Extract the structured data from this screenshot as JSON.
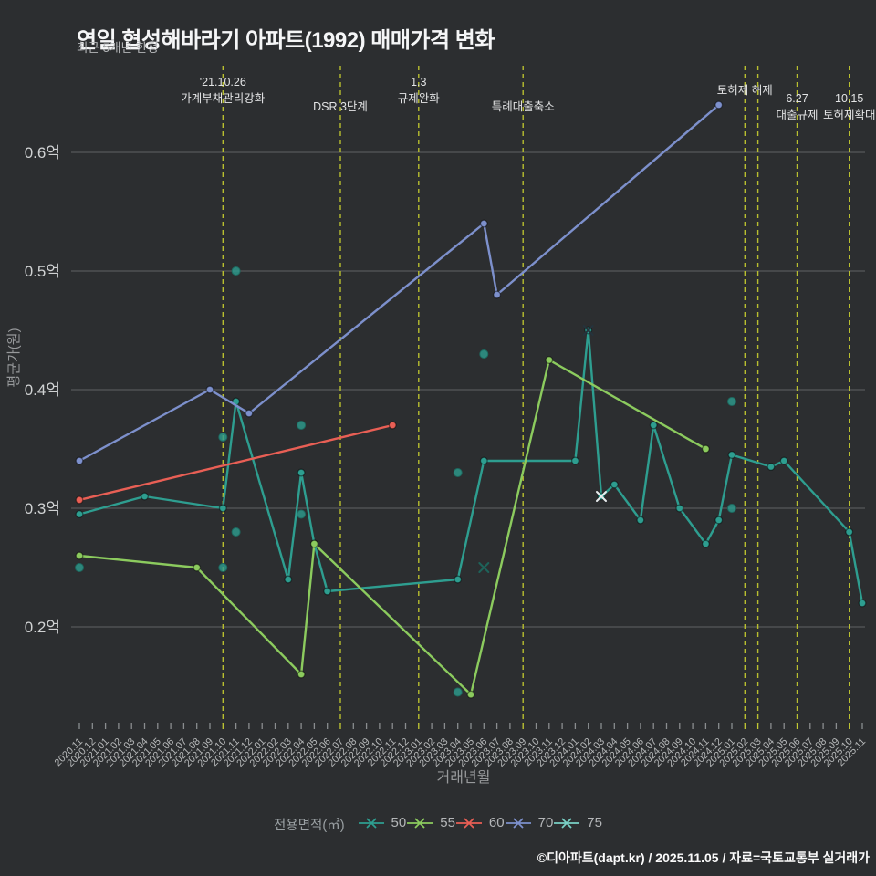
{
  "title": "연일 협성해바라기 아파트(1992) 매매가격 변화",
  "subtitle": "최근 5개년 한정",
  "footer": "©디아파트(dapt.kr) / 2025.11.05 / 자료=국토교통부 실거래가",
  "chart_data": {
    "type": "line",
    "title": "연일 협성해바라기 아파트(1992) 매매가격 변화",
    "subtitle": "최근 5개년 한정",
    "xlabel": "거래년월",
    "ylabel": "평균가(원)",
    "legend_title": "전용면적(㎡)",
    "ylim": [
      0.118,
      0.672
    ],
    "grid": "horizontal",
    "event_line_color": "#b9bf2f",
    "x_tick_highlight_color": "#c3ca34",
    "y_ticks": [
      {
        "label": "0.2억",
        "value": 0.2
      },
      {
        "label": "0.3억",
        "value": 0.3
      },
      {
        "label": "0.4억",
        "value": 0.4
      },
      {
        "label": "0.5억",
        "value": 0.5
      },
      {
        "label": "0.6억",
        "value": 0.6
      }
    ],
    "x_categories": [
      "2020.11",
      "2020.12",
      "2021.01",
      "2021.02",
      "2021.03",
      "2021.04",
      "2021.05",
      "2021.06",
      "2021.07",
      "2021.08",
      "2021.09",
      "2021.10",
      "2021.11",
      "2021.12",
      "2022.01",
      "2022.02",
      "2022.03",
      "2022.04",
      "2022.05",
      "2022.06",
      "2022.07",
      "2022.08",
      "2022.09",
      "2022.10",
      "2022.11",
      "2022.12",
      "2023.01",
      "2023.02",
      "2023.03",
      "2023.04",
      "2023.05",
      "2023.06",
      "2023.07",
      "2023.08",
      "2023.09",
      "2023.10",
      "2023.11",
      "2023.12",
      "2024.01",
      "2024.02",
      "2024.03",
      "2024.04",
      "2024.05",
      "2024.06",
      "2024.07",
      "2024.08",
      "2024.09",
      "2024.10",
      "2024.11",
      "2024.12",
      "2025.01",
      "2025.02",
      "2025.03",
      "2025.04",
      "2025.05",
      "2025.06",
      "2025.07",
      "2025.08",
      "2025.09",
      "2025.10",
      "2025.11"
    ],
    "series": [
      {
        "name": "50",
        "color": "#2e9e90",
        "points": [
          [
            "2020.11",
            0.295
          ],
          [
            "2021.04",
            0.31
          ],
          [
            "2021.10",
            0.3
          ],
          [
            "2021.11",
            0.39
          ],
          [
            "2022.03",
            0.24
          ],
          [
            "2022.04",
            0.33
          ],
          [
            "2022.05",
            0.27
          ],
          [
            "2022.06",
            0.23
          ],
          [
            "2023.04",
            0.24
          ],
          [
            "2023.06",
            0.34
          ],
          [
            "2024.01",
            0.34
          ],
          [
            "2024.02",
            0.45
          ],
          [
            "2024.03",
            0.31
          ],
          [
            "2024.04",
            0.32
          ],
          [
            "2024.06",
            0.29
          ],
          [
            "2024.07",
            0.37
          ],
          [
            "2024.09",
            0.3
          ],
          [
            "2024.11",
            0.27
          ],
          [
            "2024.12",
            0.29
          ],
          [
            "2025.01",
            0.345
          ],
          [
            "2025.04",
            0.335
          ],
          [
            "2025.05",
            0.34
          ],
          [
            "2025.10",
            0.28
          ],
          [
            "2025.11",
            0.22
          ]
        ]
      },
      {
        "name": "55",
        "color": "#8ccb5e",
        "points": [
          [
            "2020.11",
            0.26
          ],
          [
            "2021.08",
            0.25
          ],
          [
            "2022.04",
            0.16
          ],
          [
            "2022.05",
            0.27
          ],
          [
            "2023.05",
            0.143
          ],
          [
            "2023.11",
            0.425
          ],
          [
            "2024.11",
            0.35
          ]
        ]
      },
      {
        "name": "60",
        "color": "#e95f55",
        "points": [
          [
            "2020.11",
            0.307
          ],
          [
            "2022.11",
            0.37
          ]
        ]
      },
      {
        "name": "70",
        "color": "#7d90cc",
        "points": [
          [
            "2020.11",
            0.34
          ],
          [
            "2021.09",
            0.4
          ],
          [
            "2021.12",
            0.38
          ],
          [
            "2023.06",
            0.54
          ],
          [
            "2023.07",
            0.48
          ],
          [
            "2024.12",
            0.64
          ]
        ]
      },
      {
        "name": "75",
        "color": "#79d0c5",
        "draw": "markers",
        "marker": "x",
        "marker_colors": [
          "#1e635a",
          "#25333c",
          "#e9edef"
        ],
        "points": [
          [
            "2023.06",
            0.25
          ],
          [
            "2024.02",
            0.45
          ],
          [
            "2024.03",
            0.31
          ]
        ]
      }
    ],
    "scatter": {
      "name": "individual-transactions",
      "color": "#2e9e90",
      "points": [
        [
          "2020.11",
          0.25
        ],
        [
          "2021.10",
          0.36
        ],
        [
          "2021.10",
          0.25
        ],
        [
          "2021.11",
          0.5
        ],
        [
          "2021.11",
          0.28
        ],
        [
          "2022.04",
          0.37
        ],
        [
          "2022.04",
          0.295
        ],
        [
          "2023.04",
          0.33
        ],
        [
          "2023.04",
          0.145
        ],
        [
          "2023.06",
          0.43
        ],
        [
          "2025.01",
          0.39
        ],
        [
          "2025.01",
          0.3
        ]
      ]
    },
    "events": [
      {
        "month": "2021.10",
        "lines": [
          "'21.10.26",
          "가계부채관리강화"
        ],
        "line_ys": [
          94,
          112
        ]
      },
      {
        "month": "2022.07",
        "lines": [
          "DSR 3단계"
        ],
        "line_ys": [
          121
        ]
      },
      {
        "month": "2023.01",
        "lines": [
          "1.3",
          "규제완화"
        ],
        "line_ys": [
          94,
          112
        ]
      },
      {
        "month": "2023.09",
        "lines": [
          "특례대출축소"
        ],
        "line_ys": [
          121
        ]
      },
      {
        "month": "2025.02",
        "lines": [
          "토허제 해제"
        ],
        "line_ys": [
          103
        ]
      },
      {
        "month": "2025.03",
        "lines": [],
        "line_ys": []
      },
      {
        "month": "2025.06",
        "lines": [
          "6.27",
          "대출규제"
        ],
        "line_ys": [
          112,
          130
        ]
      },
      {
        "month": "2025.10",
        "lines": [
          "10.15",
          "토허제확대"
        ],
        "line_ys": [
          112,
          130
        ]
      }
    ]
  }
}
